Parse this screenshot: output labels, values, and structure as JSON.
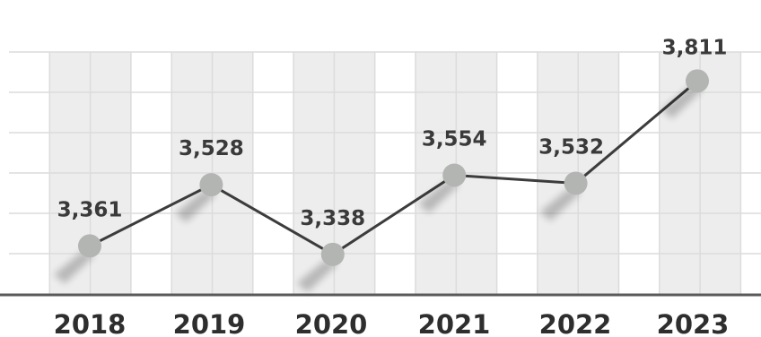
{
  "chart_data": {
    "type": "line",
    "categories": [
      "2018",
      "2019",
      "2020",
      "2021",
      "2022",
      "2023"
    ],
    "series": [
      {
        "values": [
          3361,
          3528,
          3338,
          3554,
          3532,
          3811
        ]
      }
    ],
    "data_labels": [
      "3,361",
      "3,528",
      "3,338",
      "3,554",
      "3,532",
      "3,811"
    ],
    "ylim": [
      3230,
      3890
    ],
    "grid": true,
    "colors": {
      "line": "#3c3c3c",
      "marker": "#b3b5b3",
      "grid_line": "#dcdcdc",
      "band_shade": "#ededed",
      "baseline": "#5a5a5a",
      "text": "#2e2e2e"
    }
  }
}
